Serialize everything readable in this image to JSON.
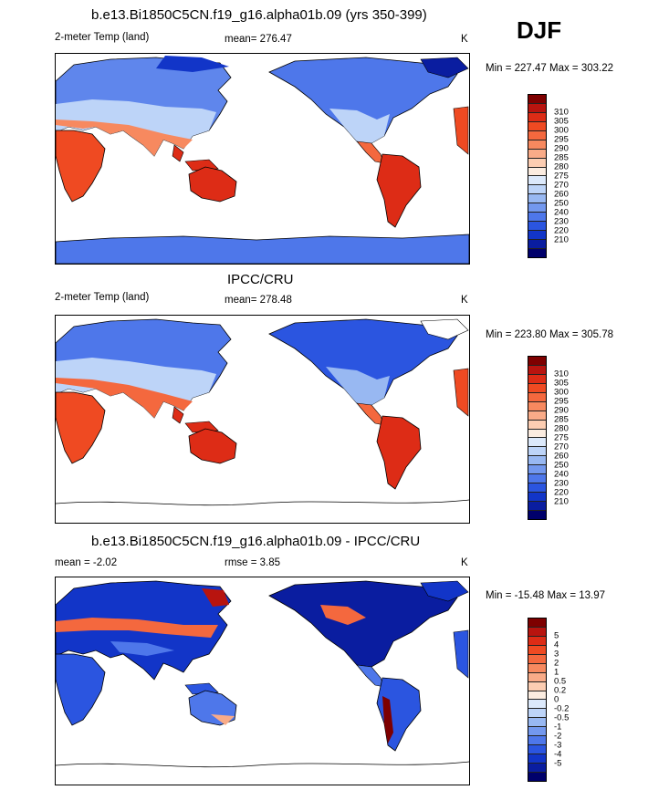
{
  "season": "DJF",
  "panels": [
    {
      "title": "b.e13.Bi1850C5CN.f19_g16.alpha01b.09 (yrs 350-399)",
      "left_label": "2-meter Temp (land)",
      "center_label": "mean= 276.47",
      "units": "K",
      "minmax": "Min = 227.47 Max = 303.22",
      "colorbar": {
        "colors": [
          "#7e0000",
          "#b8140f",
          "#dd2c16",
          "#ef4a22",
          "#f4683e",
          "#f7895f",
          "#f9ab88",
          "#fccdb2",
          "#fbece0",
          "#dce9fb",
          "#bdd4f8",
          "#98b8f2",
          "#7398ee",
          "#4e77ea",
          "#2b55e0",
          "#1235c8",
          "#0a1da0",
          "#00006b"
        ],
        "labels": [
          "310",
          "305",
          "300",
          "295",
          "290",
          "285",
          "280",
          "275",
          "270",
          "260",
          "250",
          "240",
          "230",
          "220",
          "210"
        ]
      }
    },
    {
      "title": "IPCC/CRU",
      "left_label": "2-meter Temp (land)",
      "center_label": "mean= 278.48",
      "units": "K",
      "minmax": "Min = 223.80 Max = 305.78",
      "colorbar": {
        "colors": [
          "#7e0000",
          "#b8140f",
          "#dd2c16",
          "#ef4a22",
          "#f4683e",
          "#f7895f",
          "#f9ab88",
          "#fccdb2",
          "#fbece0",
          "#dce9fb",
          "#bdd4f8",
          "#98b8f2",
          "#7398ee",
          "#4e77ea",
          "#2b55e0",
          "#1235c8",
          "#0a1da0",
          "#00006b"
        ],
        "labels": [
          "310",
          "305",
          "300",
          "295",
          "290",
          "285",
          "280",
          "275",
          "270",
          "260",
          "250",
          "240",
          "230",
          "220",
          "210"
        ]
      }
    },
    {
      "title": "b.e13.Bi1850C5CN.f19_g16.alpha01b.09 - IPCC/CRU",
      "left_label": "mean =  -2.02",
      "center_label": "rmse =    3.85",
      "units": "K",
      "minmax": "Min = -15.48 Max =  13.97",
      "colorbar": {
        "colors": [
          "#7e0000",
          "#b8140f",
          "#dd2c16",
          "#ef4a22",
          "#f4683e",
          "#f7895f",
          "#f9ab88",
          "#fccdb2",
          "#fbece0",
          "#dce9fb",
          "#bdd4f8",
          "#98b8f2",
          "#7398ee",
          "#4e77ea",
          "#2b55e0",
          "#1235c8",
          "#0a1da0",
          "#00006b"
        ],
        "labels": [
          "5",
          "4",
          "3",
          "2",
          "1",
          "0.5",
          "0.2",
          "0",
          "-0.2",
          "-0.5",
          "-1",
          "-2",
          "-3",
          "-4",
          "-5"
        ]
      }
    }
  ]
}
